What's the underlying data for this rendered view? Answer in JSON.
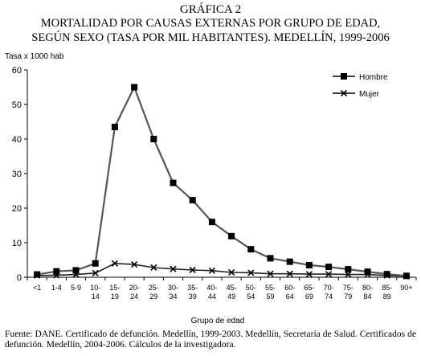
{
  "chart_data": {
    "type": "line",
    "title_lines": [
      "GRÁFICA 2",
      "MORTALIDAD POR CAUSAS EXTERNAS POR GRUPO DE EDAD,",
      "SEGÚN SEXO (TASA POR MIL HABITANTES). MEDELLÍN, 1999-2006"
    ],
    "ylabel": "Tasa x 1000 hab",
    "xlabel": "Grupo de edad",
    "ylim": [
      0,
      60
    ],
    "yticks": [
      "0",
      "10",
      "20",
      "30",
      "40",
      "50",
      "60"
    ],
    "categories": [
      [
        "<1"
      ],
      [
        "1-4"
      ],
      [
        "5-9"
      ],
      [
        "10-",
        "14"
      ],
      [
        "15-",
        "19"
      ],
      [
        "20-",
        "24"
      ],
      [
        "25-",
        "29"
      ],
      [
        "30-",
        "34"
      ],
      [
        "35-",
        "39"
      ],
      [
        "40-",
        "44"
      ],
      [
        "45-",
        "49"
      ],
      [
        "50-",
        "54"
      ],
      [
        "55-",
        "59"
      ],
      [
        "60-",
        "64"
      ],
      [
        "65-",
        "69"
      ],
      [
        "70-",
        "74"
      ],
      [
        "75-",
        "79"
      ],
      [
        "80-",
        "84"
      ],
      [
        "85-",
        "89"
      ],
      [
        "90+"
      ]
    ],
    "series": [
      {
        "name": "Hombre",
        "marker": "square",
        "color": "#000000",
        "values": [
          0.8,
          1.7,
          2.0,
          4.0,
          43.5,
          55.0,
          40.0,
          27.3,
          22.3,
          16.0,
          11.9,
          8.1,
          5.5,
          4.5,
          3.5,
          3.0,
          2.3,
          1.6,
          0.9,
          0.4
        ]
      },
      {
        "name": "Mujer",
        "marker": "x",
        "color": "#000000",
        "values": [
          0.5,
          0.6,
          0.8,
          1.2,
          4.0,
          3.7,
          2.8,
          2.4,
          2.1,
          1.9,
          1.4,
          1.3,
          1.0,
          1.0,
          0.9,
          0.9,
          0.8,
          0.8,
          0.5,
          0.3
        ]
      }
    ],
    "legend_position": "top-right",
    "grid": false
  },
  "source_text": "Fuente: DANE. Certificado de defunción. Medellín, 1999-2003. Medellín, Secretaría de Salud. Certificados de defunción. Medellín, 2004-2006. Cálculos de la investigadora."
}
